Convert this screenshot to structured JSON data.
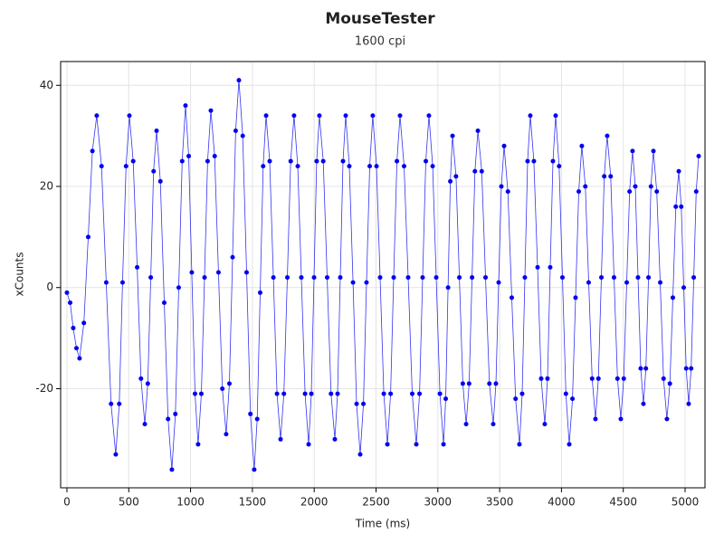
{
  "chart_data": {
    "type": "line",
    "title": "MouseTester",
    "subtitle": "1600 cpi",
    "x_label": "Time (ms)",
    "y_label": "xCounts",
    "xlim": [
      -51,
      5161
    ],
    "ylim": [
      -39.6,
      44.7
    ],
    "xticks": [
      0,
      500,
      1000,
      1500,
      2000,
      2500,
      3000,
      3500,
      4000,
      4500,
      5000
    ],
    "yticks": [
      -20,
      0,
      20,
      40
    ],
    "grid": true,
    "markers": true,
    "x": [
      0,
      26,
      51,
      77,
      102,
      137,
      172,
      206,
      241,
      280,
      318,
      357,
      395,
      423,
      450,
      478,
      505,
      536,
      568,
      599,
      630,
      654,
      678,
      701,
      725,
      756,
      787,
      818,
      849,
      877,
      904,
      932,
      959,
      985,
      1010,
      1036,
      1061,
      1087,
      1113,
      1138,
      1164,
      1195,
      1226,
      1257,
      1288,
      1314,
      1340,
      1365,
      1391,
      1422,
      1453,
      1484,
      1515,
      1539,
      1563,
      1587,
      1611,
      1640,
      1670,
      1699,
      1728,
      1755,
      1783,
      1810,
      1837,
      1867,
      1896,
      1926,
      1955,
      1977,
      1999,
      2020,
      2042,
      2073,
      2105,
      2136,
      2167,
      2189,
      2211,
      2233,
      2255,
      2284,
      2314,
      2343,
      2372,
      2398,
      2423,
      2449,
      2474,
      2504,
      2533,
      2563,
      2592,
      2618,
      2643,
      2669,
      2694,
      2727,
      2760,
      2793,
      2826,
      2852,
      2877,
      2903,
      2928,
      2958,
      2987,
      3017,
      3046,
      3064,
      3083,
      3101,
      3119,
      3147,
      3174,
      3202,
      3229,
      3253,
      3277,
      3300,
      3324,
      3355,
      3386,
      3417,
      3448,
      3470,
      3492,
      3514,
      3536,
      3567,
      3598,
      3629,
      3660,
      3682,
      3704,
      3726,
      3748,
      3777,
      3807,
      3836,
      3865,
      3887,
      3909,
      3931,
      3953,
      3981,
      4008,
      4036,
      4063,
      4089,
      4114,
      4140,
      4165,
      4193,
      4220,
      4248,
      4275,
      4299,
      4323,
      4346,
      4370,
      4398,
      4425,
      4453,
      4480,
      4504,
      4528,
      4551,
      4575,
      4597,
      4619,
      4641,
      4663,
      4683,
      4704,
      4724,
      4744,
      4771,
      4799,
      4826,
      4853,
      4877,
      4901,
      4925,
      4949,
      4969,
      4989,
      5009,
      5029,
      5049,
      5070,
      5090,
      5110
    ],
    "series": [
      {
        "color": "#0000ee",
        "values": [
          -1,
          -3,
          -8,
          -12,
          -14,
          -7,
          10,
          27,
          34,
          24,
          1,
          -23,
          -33,
          -23,
          1,
          24,
          34,
          25,
          4,
          -18,
          -27,
          -19,
          2,
          23,
          31,
          21,
          -3,
          -26,
          -36,
          -25,
          0,
          25,
          36,
          26,
          3,
          -21,
          -31,
          -21,
          2,
          25,
          35,
          26,
          3,
          -20,
          -29,
          -19,
          6,
          31,
          41,
          30,
          3,
          -25,
          -36,
          -26,
          -1,
          24,
          34,
          25,
          2,
          -21,
          -30,
          -21,
          2,
          25,
          34,
          24,
          2,
          -21,
          -31,
          -21,
          2,
          25,
          34,
          25,
          2,
          -21,
          -30,
          -21,
          2,
          25,
          34,
          24,
          1,
          -23,
          -33,
          -23,
          1,
          24,
          34,
          24,
          2,
          -21,
          -31,
          -21,
          2,
          25,
          34,
          24,
          2,
          -21,
          -31,
          -21,
          2,
          25,
          34,
          24,
          2,
          -21,
          -31,
          -22,
          0,
          21,
          30,
          22,
          2,
          -19,
          -27,
          -19,
          2,
          23,
          31,
          23,
          2,
          -19,
          -27,
          -19,
          1,
          20,
          28,
          19,
          -2,
          -22,
          -31,
          -21,
          2,
          25,
          34,
          25,
          4,
          -18,
          -27,
          -18,
          4,
          25,
          34,
          24,
          2,
          -21,
          -31,
          -22,
          -2,
          19,
          28,
          20,
          1,
          -18,
          -26,
          -18,
          2,
          22,
          30,
          22,
          2,
          -18,
          -26,
          -18,
          1,
          19,
          27,
          20,
          2,
          -16,
          -23,
          -16,
          2,
          20,
          27,
          19,
          1,
          -18,
          -26,
          -19,
          -2,
          16,
          23,
          16,
          0,
          -16,
          -23,
          -16,
          2,
          19,
          26
        ]
      }
    ]
  }
}
